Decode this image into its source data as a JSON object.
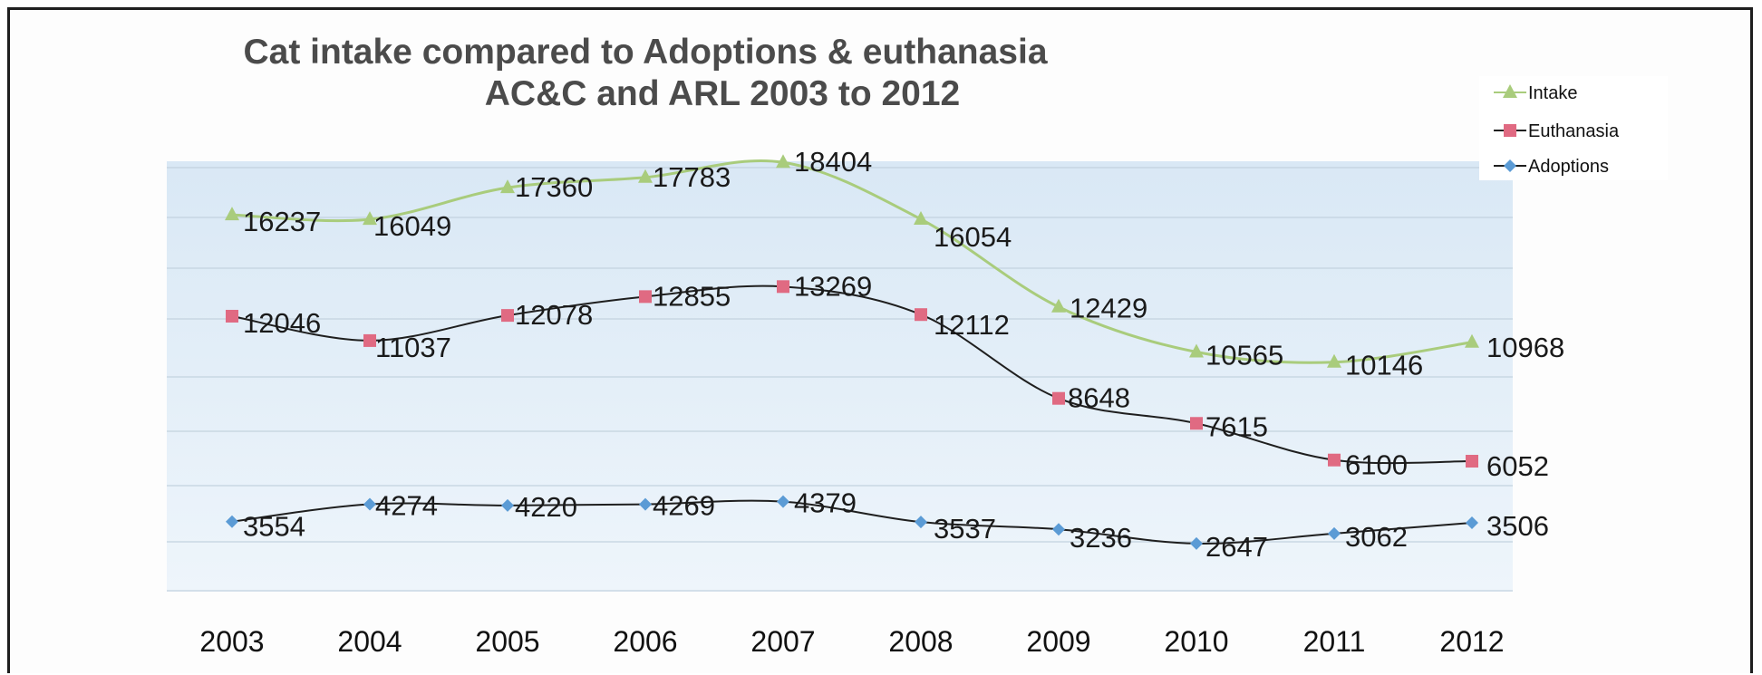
{
  "chart_data": {
    "type": "line",
    "title": "Cat intake compared to Adoptions & euthanasia",
    "subtitle": "AC&C and ARL 2003 to 2012",
    "categories": [
      "2003",
      "2004",
      "2005",
      "2006",
      "2007",
      "2008",
      "2009",
      "2010",
      "2011",
      "2012"
    ],
    "series": [
      {
        "name": "Intake",
        "color": "#a9cc7c",
        "marker": "triangle",
        "values": [
          16237,
          16049,
          17360,
          17783,
          18404,
          16054,
          12429,
          10565,
          10146,
          10968
        ]
      },
      {
        "name": "Euthanasia",
        "color": "#e06a82",
        "marker": "square",
        "values": [
          12046,
          11037,
          12078,
          12855,
          13269,
          12112,
          8648,
          7615,
          6100,
          6052
        ]
      },
      {
        "name": "Adoptions",
        "color": "#5b9bd5",
        "marker": "diamond",
        "values": [
          3554,
          4274,
          4220,
          4269,
          4379,
          3537,
          3236,
          2647,
          3062,
          3506
        ]
      }
    ],
    "legend_position": "top-right",
    "grid": true,
    "data_labels": true
  }
}
